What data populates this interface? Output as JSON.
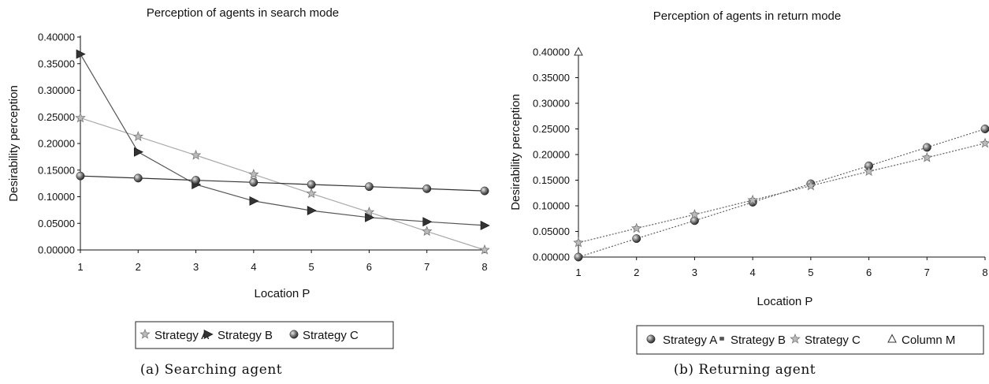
{
  "chart_data": [
    {
      "type": "line",
      "title": "Perception of agents in search mode",
      "xlabel": "Location P",
      "ylabel": "Desirability perception",
      "caption": "(a) Searching agent",
      "x": [
        1,
        2,
        3,
        4,
        5,
        6,
        7,
        8
      ],
      "xlim": [
        1,
        8
      ],
      "ylim": [
        0,
        0.4
      ],
      "yticks": [
        "0.00000",
        "0.05000",
        "0.10000",
        "0.15000",
        "0.20000",
        "0.25000",
        "0.30000",
        "0.35000",
        "0.40000"
      ],
      "xticks": [
        "1",
        "2",
        "3",
        "4",
        "5",
        "6",
        "7",
        "8"
      ],
      "grid": false,
      "legend_position": "bottom",
      "series": [
        {
          "name": "Strategy A",
          "marker": "star",
          "color": "#999999",
          "values": [
            0.248,
            0.213,
            0.178,
            0.142,
            0.106,
            0.071,
            0.035,
            0.0
          ]
        },
        {
          "name": "Strategy B",
          "marker": "triangle-right",
          "color": "#444444",
          "values": [
            0.368,
            0.184,
            0.123,
            0.092,
            0.074,
            0.061,
            0.053,
            0.046
          ]
        },
        {
          "name": "Strategy C",
          "marker": "sphere",
          "color": "#222222",
          "values": [
            0.139,
            0.135,
            0.131,
            0.127,
            0.123,
            0.119,
            0.115,
            0.111
          ]
        }
      ]
    },
    {
      "type": "line",
      "title": "Perception of agents in return mode",
      "xlabel": "Location P",
      "ylabel": "Desirability perception",
      "caption": "(b) Returning agent",
      "x": [
        1,
        2,
        3,
        4,
        5,
        6,
        7,
        8
      ],
      "xlim": [
        1,
        8
      ],
      "ylim": [
        0,
        0.4
      ],
      "yticks": [
        "0.00000",
        "0.05000",
        "0.10000",
        "0.15000",
        "0.20000",
        "0.25000",
        "0.30000",
        "0.35000",
        "0.40000"
      ],
      "xticks": [
        "1",
        "2",
        "3",
        "4",
        "5",
        "6",
        "7",
        "8"
      ],
      "grid": false,
      "legend_position": "bottom",
      "series": [
        {
          "name": "Strategy A",
          "marker": "sphere",
          "color": "#444444",
          "values": [
            0.0,
            0.036,
            0.071,
            0.107,
            0.143,
            0.178,
            0.214,
            0.25
          ]
        },
        {
          "name": "Strategy B",
          "marker": "square",
          "color": "#666666",
          "values": [
            0.028,
            0.056,
            0.083,
            0.111,
            0.139,
            0.167,
            0.194,
            0.222
          ]
        },
        {
          "name": "Strategy C",
          "marker": "star",
          "color": "#999999",
          "values": [
            0.028,
            0.056,
            0.083,
            0.111,
            0.139,
            0.167,
            0.194,
            0.222
          ]
        },
        {
          "name": "Column M",
          "marker": "triangle-open",
          "color": "#333333",
          "values": [
            0.4,
            null,
            null,
            null,
            null,
            null,
            null,
            null
          ]
        }
      ]
    }
  ]
}
